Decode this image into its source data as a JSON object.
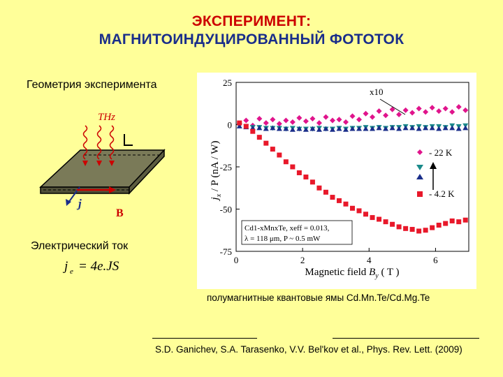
{
  "title": {
    "line1": "ЭКСПЕРИМЕНТ:",
    "line2": "МАГНИТОИНДУЦИРОВАННЫЙ ФОТОТОК"
  },
  "geometry_label": "Геометрия эксперимента",
  "diagram": {
    "thz_label": "THz",
    "j_label": "j",
    "b_label": "B"
  },
  "current_label": "Электрический ток",
  "formula": {
    "lhs": "j",
    "lhs_sub": "e",
    "rhs": "= 4e.JS"
  },
  "caption": "полумагнитные квантовые ямы Cd.Mn.Te/Cd.Mg.Te",
  "reference": "S.D. Ganichev, S.A. Tarasenko, V.V. Bel'kov et al., Phys. Rev. Lett. (2009)",
  "colors": {
    "background": "#ffff99",
    "title_red": "#cc0000",
    "title_blue": "#1a2e8a",
    "series_magenta": "#e0148c",
    "series_teal": "#1a8a8a",
    "series_red": "#e8182a"
  },
  "chart_data": {
    "type": "scatter",
    "xlabel_main": "Magnetic field ",
    "xlabel_var": "B",
    "xlabel_sub": "y",
    "xlabel_unit": " ( T )",
    "ylabel_prefix": "j",
    "ylabel_sub": "x",
    "ylabel_rest": " / P (nA / W)",
    "xlim": [
      0,
      7
    ],
    "ylim": [
      -75,
      25
    ],
    "x_ticks": [
      0,
      2,
      4,
      6
    ],
    "y_ticks": [
      25,
      0,
      -25,
      -50,
      -75
    ],
    "multiplier_label": "x10",
    "sample_info": [
      "Cd1-xMnxTe,  xeff = 0.013,",
      "λ = 118 μm,  P ~ 0.5 mW"
    ],
    "legend": [
      "- 22 K",
      "- 4.2 K"
    ],
    "series": [
      {
        "label_ref": "- 22 K",
        "marker": "diamond",
        "color": "#e0148c",
        "points": [
          [
            0.1,
            0.5
          ],
          [
            0.3,
            2.5
          ],
          [
            0.5,
            -0.5
          ],
          [
            0.7,
            3.5
          ],
          [
            0.9,
            1.0
          ],
          [
            1.1,
            3.0
          ],
          [
            1.3,
            0.5
          ],
          [
            1.5,
            2.5
          ],
          [
            1.7,
            1.5
          ],
          [
            1.9,
            4.0
          ],
          [
            2.1,
            2.0
          ],
          [
            2.3,
            3.5
          ],
          [
            2.5,
            1.0
          ],
          [
            2.7,
            4.5
          ],
          [
            2.9,
            2.5
          ],
          [
            3.1,
            3.0
          ],
          [
            3.3,
            1.5
          ],
          [
            3.5,
            5.0
          ],
          [
            3.7,
            3.0
          ],
          [
            3.9,
            6.5
          ],
          [
            4.1,
            4.5
          ],
          [
            4.3,
            8.0
          ],
          [
            4.5,
            5.5
          ],
          [
            4.7,
            9.0
          ],
          [
            4.9,
            6.0
          ],
          [
            5.1,
            8.5
          ],
          [
            5.3,
            7.0
          ],
          [
            5.5,
            9.5
          ],
          [
            5.7,
            7.5
          ],
          [
            5.9,
            10.0
          ],
          [
            6.1,
            8.0
          ],
          [
            6.3,
            9.5
          ],
          [
            6.5,
            7.5
          ],
          [
            6.7,
            10.5
          ],
          [
            6.9,
            8.5
          ]
        ]
      },
      {
        "label_ref": "",
        "marker": "triangle-down",
        "color": "#1a8a8a",
        "points": [
          [
            0.1,
            -0.5
          ],
          [
            0.3,
            -1.0
          ],
          [
            0.5,
            -1.5
          ],
          [
            0.7,
            -1.5
          ],
          [
            0.9,
            -2.0
          ],
          [
            1.1,
            -2.0
          ],
          [
            1.3,
            -2.0
          ],
          [
            1.5,
            -2.5
          ],
          [
            1.7,
            -2.0
          ],
          [
            1.9,
            -2.5
          ],
          [
            2.1,
            -2.5
          ],
          [
            2.3,
            -2.5
          ],
          [
            2.5,
            -2.0
          ],
          [
            2.7,
            -2.5
          ],
          [
            2.9,
            -2.5
          ],
          [
            3.1,
            -2.0
          ],
          [
            3.3,
            -2.5
          ],
          [
            3.5,
            -2.0
          ],
          [
            3.7,
            -2.0
          ],
          [
            3.9,
            -1.5
          ],
          [
            4.1,
            -2.0
          ],
          [
            4.3,
            -1.5
          ],
          [
            4.5,
            -2.0
          ],
          [
            4.7,
            -1.5
          ],
          [
            4.9,
            -1.5
          ],
          [
            5.1,
            -1.0
          ],
          [
            5.3,
            -1.5
          ],
          [
            5.5,
            -1.0
          ],
          [
            5.7,
            -1.5
          ],
          [
            5.9,
            -1.0
          ],
          [
            6.1,
            -1.0
          ],
          [
            6.3,
            -1.5
          ],
          [
            6.5,
            -0.5
          ],
          [
            6.7,
            -1.0
          ],
          [
            6.9,
            -0.5
          ]
        ]
      },
      {
        "label_ref": "",
        "marker": "triangle-up",
        "color": "#1a2e8a",
        "points": [
          [
            0.1,
            -1.0
          ],
          [
            0.3,
            -1.5
          ],
          [
            0.5,
            -2.0
          ],
          [
            0.7,
            -2.0
          ],
          [
            0.9,
            -2.5
          ],
          [
            1.1,
            -2.0
          ],
          [
            1.3,
            -2.5
          ],
          [
            1.5,
            -2.5
          ],
          [
            1.7,
            -3.0
          ],
          [
            1.9,
            -2.5
          ],
          [
            2.1,
            -3.0
          ],
          [
            2.3,
            -2.5
          ],
          [
            2.5,
            -3.0
          ],
          [
            2.7,
            -2.5
          ],
          [
            2.9,
            -3.0
          ],
          [
            3.1,
            -2.5
          ],
          [
            3.3,
            -3.0
          ],
          [
            3.5,
            -2.5
          ],
          [
            3.7,
            -2.5
          ],
          [
            3.9,
            -2.5
          ],
          [
            4.1,
            -2.5
          ],
          [
            4.3,
            -2.0
          ],
          [
            4.5,
            -2.5
          ],
          [
            4.7,
            -2.0
          ],
          [
            4.9,
            -2.5
          ],
          [
            5.1,
            -2.0
          ],
          [
            5.3,
            -2.0
          ],
          [
            5.5,
            -2.5
          ],
          [
            5.7,
            -2.0
          ],
          [
            5.9,
            -2.0
          ],
          [
            6.1,
            -2.5
          ],
          [
            6.3,
            -2.0
          ],
          [
            6.5,
            -2.0
          ],
          [
            6.7,
            -2.5
          ],
          [
            6.9,
            -2.0
          ]
        ]
      },
      {
        "label_ref": "- 4.2 K",
        "marker": "square",
        "color": "#e8182a",
        "points": [
          [
            0.1,
            1.0
          ],
          [
            0.3,
            -1.0
          ],
          [
            0.5,
            -4.0
          ],
          [
            0.7,
            -7.5
          ],
          [
            0.9,
            -11.0
          ],
          [
            1.1,
            -14.5
          ],
          [
            1.3,
            -18.0
          ],
          [
            1.5,
            -22.0
          ],
          [
            1.7,
            -25.0
          ],
          [
            1.9,
            -28.5
          ],
          [
            2.1,
            -31.0
          ],
          [
            2.3,
            -34.0
          ],
          [
            2.5,
            -37.5
          ],
          [
            2.7,
            -40.0
          ],
          [
            2.9,
            -43.0
          ],
          [
            3.1,
            -45.0
          ],
          [
            3.3,
            -47.0
          ],
          [
            3.5,
            -49.5
          ],
          [
            3.7,
            -51.0
          ],
          [
            3.9,
            -53.0
          ],
          [
            4.1,
            -55.0
          ],
          [
            4.3,
            -56.0
          ],
          [
            4.5,
            -57.5
          ],
          [
            4.7,
            -59.0
          ],
          [
            4.9,
            -60.5
          ],
          [
            5.1,
            -61.5
          ],
          [
            5.3,
            -62.0
          ],
          [
            5.5,
            -63.0
          ],
          [
            5.7,
            -62.5
          ],
          [
            5.9,
            -61.0
          ],
          [
            6.1,
            -59.5
          ],
          [
            6.3,
            -58.5
          ],
          [
            6.5,
            -57.0
          ],
          [
            6.7,
            -57.5
          ],
          [
            6.9,
            -56.5
          ]
        ]
      }
    ]
  }
}
